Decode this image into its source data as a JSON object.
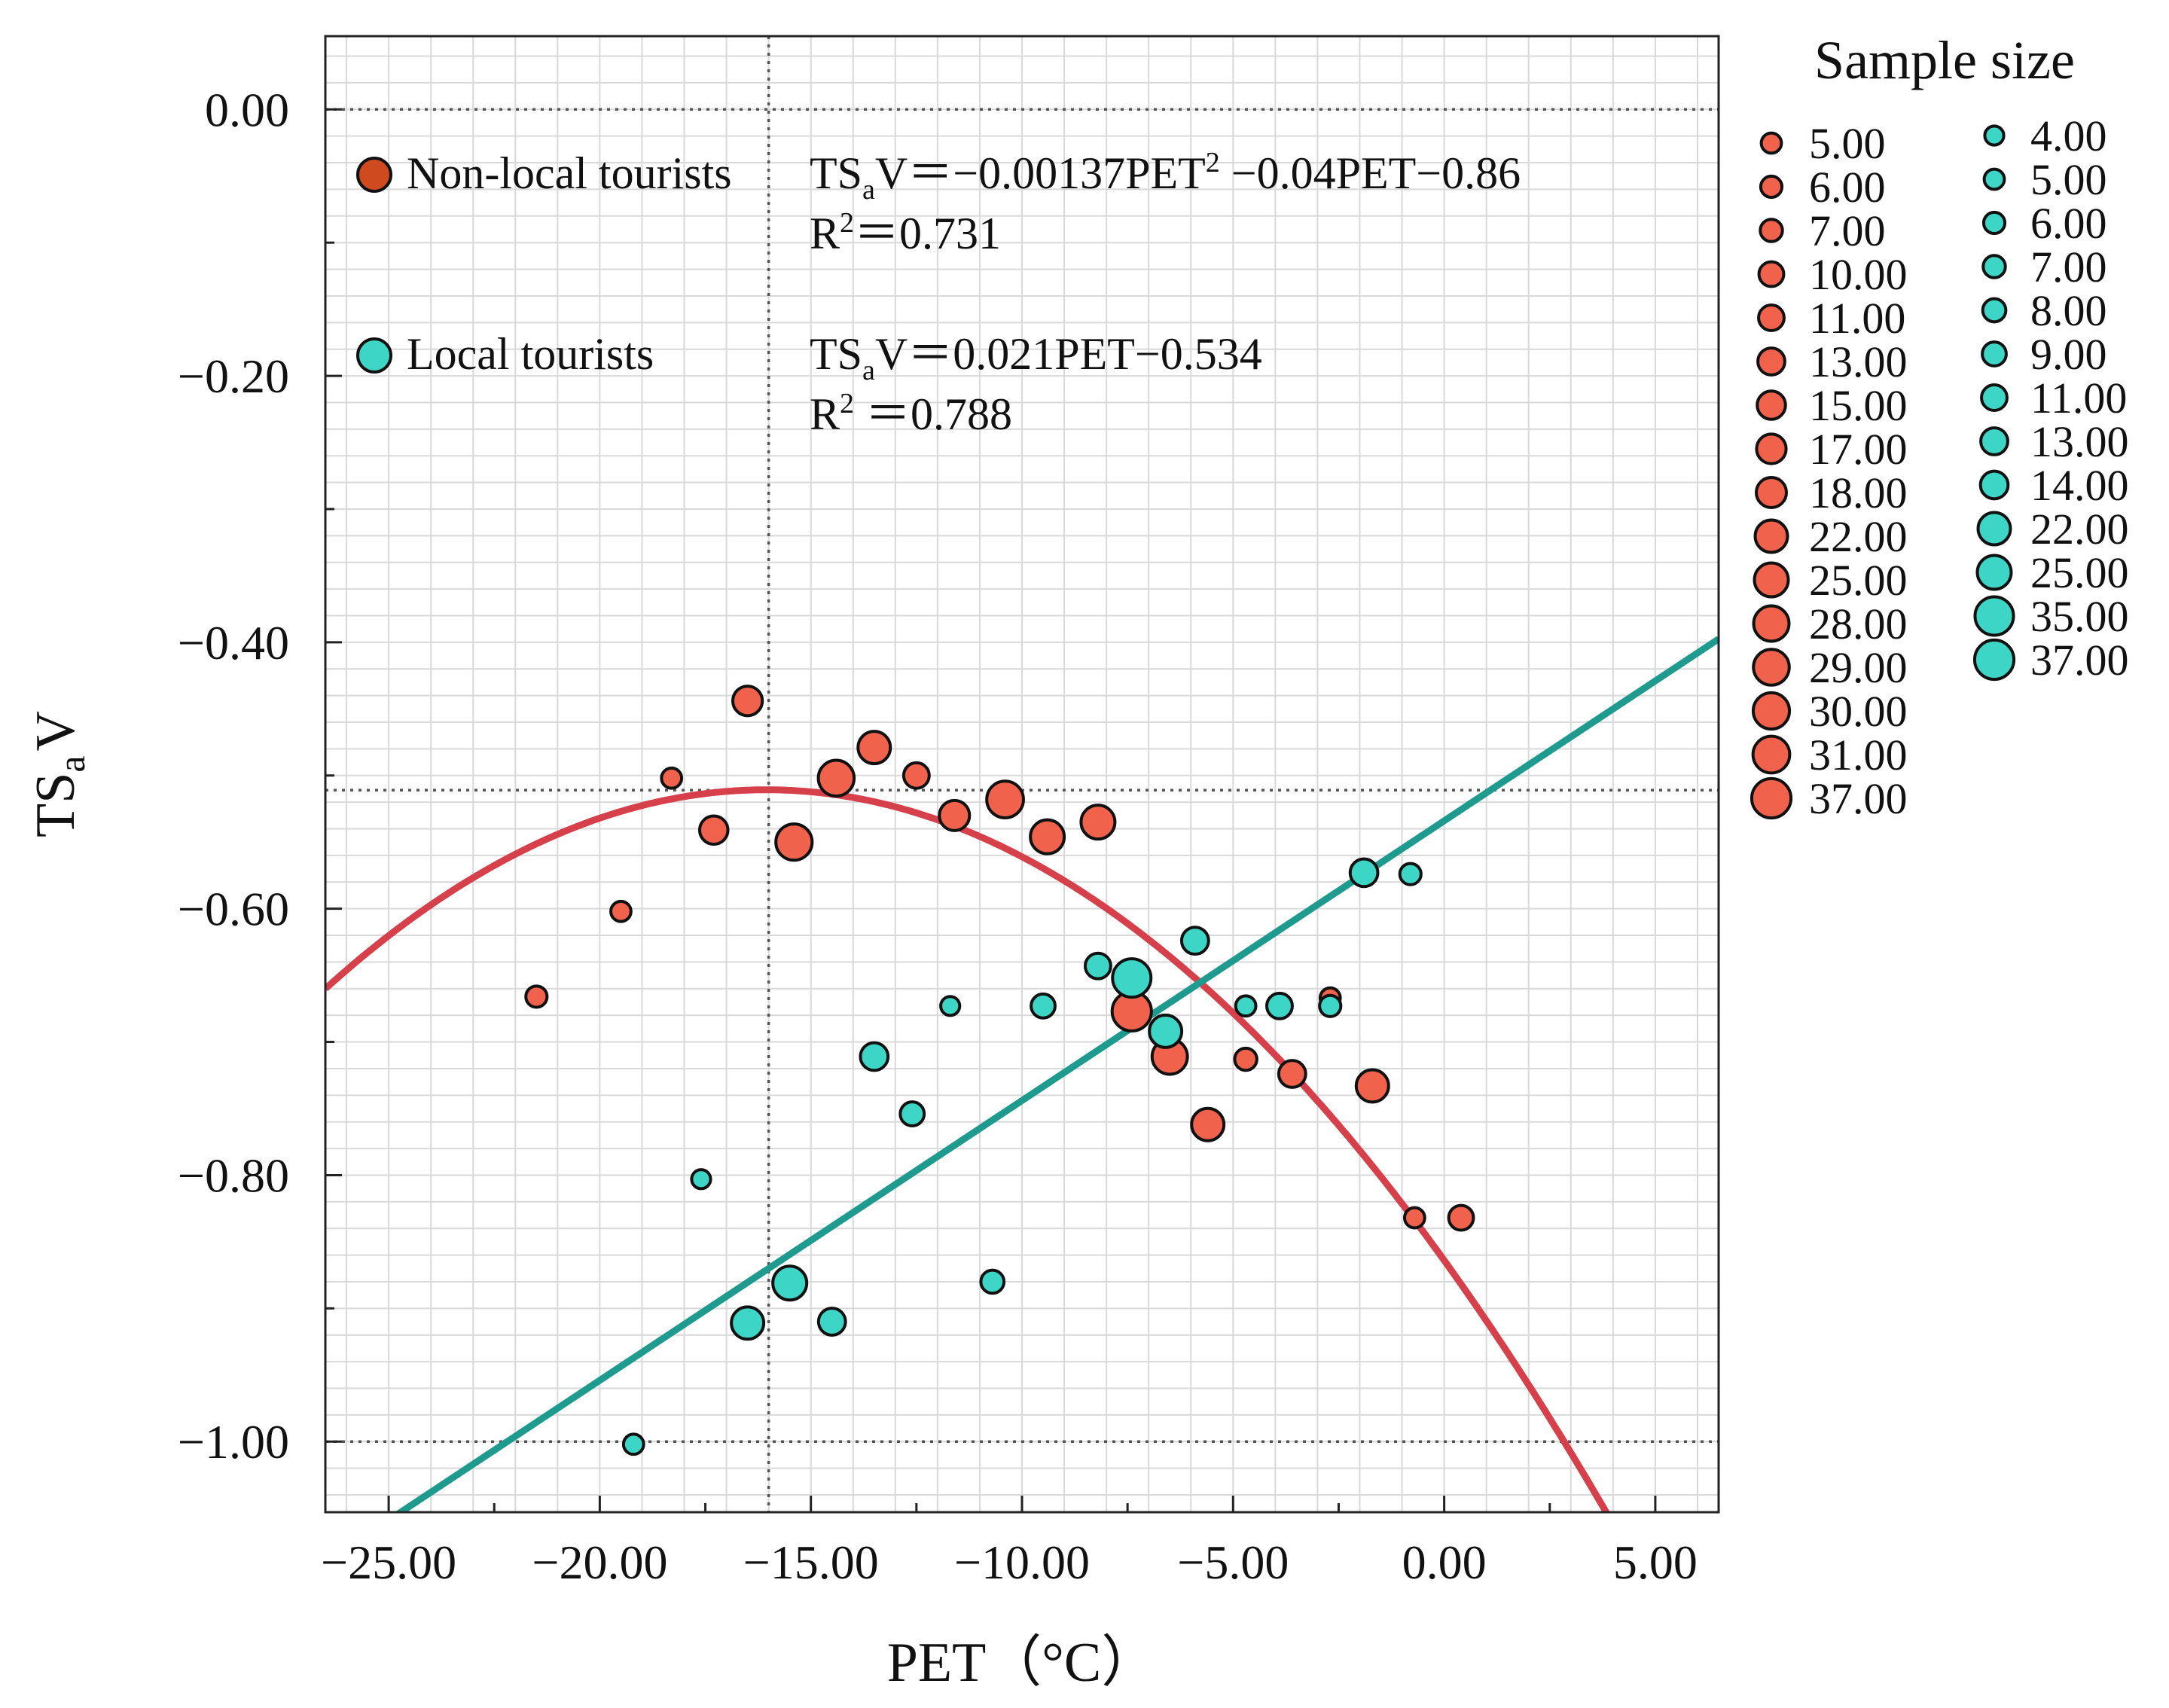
{
  "chart_data": {
    "type": "scatter",
    "xlabel": "PET（°C）",
    "ylabel_main": "TS",
    "ylabel_sub": "a",
    "ylabel_tail": "V",
    "xlim": [
      -26.5,
      6.5
    ],
    "ylim": [
      -1.053,
      0.055
    ],
    "x_ticks": [
      -25,
      -20,
      -15,
      -10,
      -5,
      0,
      5
    ],
    "x_tick_labels": [
      "−25.00",
      "−20.00",
      "−15.00",
      "−10.00",
      "−5.00",
      "0.00",
      "5.00"
    ],
    "y_ticks": [
      0,
      -0.2,
      -0.4,
      -0.6,
      -0.8,
      -1.0
    ],
    "y_tick_labels": [
      "0.00",
      "−0.20",
      "−0.40",
      "−0.60",
      "−0.80",
      "−1.00"
    ],
    "reference_lines": {
      "x": [
        -16
      ],
      "y": [
        0,
        -0.511,
        -1.0
      ]
    },
    "colors": {
      "nonlocal_fill": "#f0624c",
      "nonlocal_curve": "#d6404a",
      "nonlocal_legend": "#cf4a1f",
      "local_fill": "#3dd6c6",
      "local_line": "#1f9a8f",
      "grid": "#d9d9d9",
      "reference": "#555555"
    },
    "groups": [
      {
        "name": "Non-local tourists",
        "equation_prefix": "TS",
        "equation_sub": "a",
        "equation_body": "V＝−0.00137PET",
        "equation_sup": "2",
        "equation_rest": " −0.04PET−0.86",
        "r2_prefix": "R",
        "r2_sup": "2",
        "r2_rest": "＝0.731",
        "fit": {
          "kind": "quadratic",
          "a": -0.00137,
          "b": -0.044,
          "c": -0.864
        },
        "points": [
          {
            "x": -21.5,
            "y": -0.666,
            "n": 6
          },
          {
            "x": -19.5,
            "y": -0.602,
            "n": 5
          },
          {
            "x": -18.3,
            "y": -0.502,
            "n": 5
          },
          {
            "x": -17.3,
            "y": -0.541,
            "n": 15
          },
          {
            "x": -16.5,
            "y": -0.444,
            "n": 17
          },
          {
            "x": -15.4,
            "y": -0.55,
            "n": 30
          },
          {
            "x": -14.4,
            "y": -0.502,
            "n": 29
          },
          {
            "x": -13.5,
            "y": -0.479,
            "n": 22
          },
          {
            "x": -12.5,
            "y": -0.5,
            "n": 11
          },
          {
            "x": -11.6,
            "y": -0.53,
            "n": 18
          },
          {
            "x": -10.4,
            "y": -0.518,
            "n": 31
          },
          {
            "x": -9.4,
            "y": -0.546,
            "n": 25
          },
          {
            "x": -8.2,
            "y": -0.535,
            "n": 25
          },
          {
            "x": -7.4,
            "y": -0.677,
            "n": 37
          },
          {
            "x": -6.5,
            "y": -0.711,
            "n": 28
          },
          {
            "x": -5.6,
            "y": -0.762,
            "n": 22
          },
          {
            "x": -4.7,
            "y": -0.713,
            "n": 7
          },
          {
            "x": -3.6,
            "y": -0.724,
            "n": 13
          },
          {
            "x": -2.7,
            "y": -0.667,
            "n": 5
          },
          {
            "x": -1.7,
            "y": -0.733,
            "n": 22
          },
          {
            "x": -0.7,
            "y": -0.832,
            "n": 5
          },
          {
            "x": 0.4,
            "y": -0.832,
            "n": 10
          }
        ]
      },
      {
        "name": "Local tourists",
        "equation_prefix": "TS",
        "equation_sub": "a",
        "equation_body": "V＝0.021PET−0.534",
        "equation_sup": "",
        "equation_rest": "",
        "r2_prefix": "R",
        "r2_sup": "2",
        "r2_rest": " ＝0.788",
        "fit": {
          "kind": "linear",
          "m": 0.021,
          "b": -0.534
        },
        "points": [
          {
            "x": -19.2,
            "y": -1.002,
            "n": 5
          },
          {
            "x": -17.6,
            "y": -0.803,
            "n": 4
          },
          {
            "x": -16.5,
            "y": -0.911,
            "n": 22
          },
          {
            "x": -15.5,
            "y": -0.881,
            "n": 25
          },
          {
            "x": -14.5,
            "y": -0.91,
            "n": 13
          },
          {
            "x": -13.5,
            "y": -0.711,
            "n": 14
          },
          {
            "x": -12.6,
            "y": -0.754,
            "n": 9
          },
          {
            "x": -11.7,
            "y": -0.673,
            "n": 4
          },
          {
            "x": -10.7,
            "y": -0.88,
            "n": 8
          },
          {
            "x": -9.5,
            "y": -0.673,
            "n": 9
          },
          {
            "x": -8.2,
            "y": -0.643,
            "n": 11
          },
          {
            "x": -7.4,
            "y": -0.652,
            "n": 35
          },
          {
            "x": -6.6,
            "y": -0.692,
            "n": 22
          },
          {
            "x": -5.9,
            "y": -0.624,
            "n": 13
          },
          {
            "x": -4.7,
            "y": -0.673,
            "n": 5
          },
          {
            "x": -3.9,
            "y": -0.673,
            "n": 11
          },
          {
            "x": -2.7,
            "y": -0.673,
            "n": 6
          },
          {
            "x": -1.9,
            "y": -0.573,
            "n": 14
          },
          {
            "x": -0.8,
            "y": -0.574,
            "n": 6
          }
        ]
      }
    ],
    "legend": {
      "title": "Sample size",
      "nonlocal_sizes": [
        5,
        6,
        7,
        10,
        11,
        13,
        15,
        17,
        18,
        22,
        25,
        28,
        29,
        30,
        31,
        37
      ],
      "nonlocal_labels": [
        "5.00",
        "6.00",
        "7.00",
        "10.00",
        "11.00",
        "13.00",
        "15.00",
        "17.00",
        "18.00",
        "22.00",
        "25.00",
        "28.00",
        "29.00",
        "30.00",
        "31.00",
        "37.00"
      ],
      "local_sizes": [
        4,
        5,
        6,
        7,
        8,
        9,
        11,
        13,
        14,
        22,
        25,
        35,
        37
      ],
      "local_labels": [
        "4.00",
        "5.00",
        "6.00",
        "7.00",
        "8.00",
        "9.00",
        "11.00",
        "13.00",
        "14.00",
        "22.00",
        "25.00",
        "35.00",
        "37.00"
      ]
    }
  }
}
